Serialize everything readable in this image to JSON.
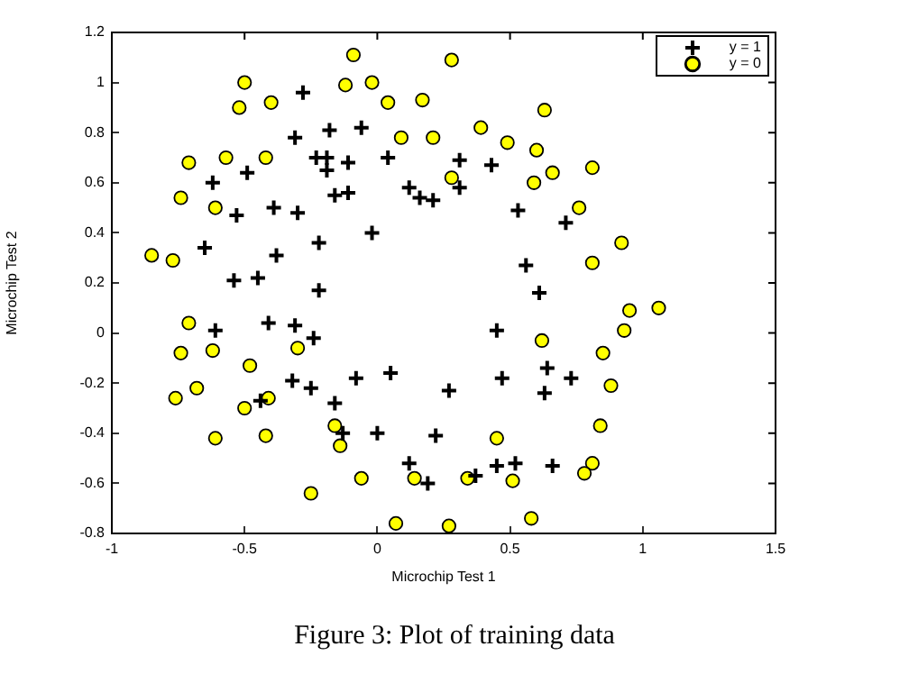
{
  "chart_data": {
    "type": "scatter",
    "xlabel": "Microchip Test 1",
    "ylabel": "Microchip Test 2",
    "xlim": [
      -1,
      1.5
    ],
    "xticks": [
      -1,
      -0.5,
      0,
      0.5,
      1,
      1.5
    ],
    "ylim": [
      -0.8,
      1.2
    ],
    "yticks": [
      -0.8,
      -0.6,
      -0.4,
      -0.2,
      0,
      0.2,
      0.4,
      0.6,
      0.8,
      1,
      1.2
    ],
    "grid": false,
    "legend": "top right",
    "annotations": [
      "Figure 3: Plot of training data"
    ],
    "series": [
      {
        "name": "y = 1",
        "color": "#000000",
        "marker": "cross",
        "x": [
          -0.28,
          -0.31,
          -0.18,
          -0.06,
          -0.23,
          -0.19,
          -0.11,
          0.04,
          -0.19,
          -0.49,
          -0.62,
          -0.16,
          -0.11,
          0.12,
          0.16,
          0.21,
          -0.39,
          -0.53,
          -0.3,
          -0.02,
          -0.22,
          -0.65,
          -0.38,
          -0.54,
          -0.45,
          0.31,
          0.43,
          0.31,
          0.53,
          0.71,
          0.56,
          -0.22,
          -0.61,
          -0.41,
          -0.31,
          -0.24,
          -0.32,
          -0.25,
          -0.08,
          0.05,
          -0.16,
          -0.44,
          -0.13,
          0.0,
          0.22,
          0.12,
          0.19,
          0.27,
          0.61,
          0.45,
          0.64,
          0.47,
          0.73,
          0.63,
          0.45,
          0.52,
          0.66,
          0.37
        ],
        "values": [
          0.96,
          0.78,
          0.81,
          0.82,
          0.7,
          0.7,
          0.68,
          0.7,
          0.65,
          0.64,
          0.6,
          0.55,
          0.56,
          0.58,
          0.54,
          0.53,
          0.5,
          0.47,
          0.48,
          0.4,
          0.36,
          0.34,
          0.31,
          0.21,
          0.22,
          0.69,
          0.67,
          0.58,
          0.49,
          0.44,
          0.27,
          0.17,
          0.01,
          0.04,
          0.03,
          -0.02,
          -0.19,
          -0.22,
          -0.18,
          -0.16,
          -0.28,
          -0.27,
          -0.4,
          -0.4,
          -0.41,
          -0.52,
          -0.6,
          -0.23,
          0.16,
          0.01,
          -0.14,
          -0.18,
          -0.18,
          -0.24,
          -0.53,
          -0.52,
          -0.53,
          -0.57
        ]
      },
      {
        "name": "y = 0",
        "color": "#ffff00",
        "marker": "circle",
        "x": [
          -0.5,
          -0.09,
          -0.12,
          -0.02,
          -0.52,
          -0.4,
          0.04,
          0.17,
          0.28,
          0.09,
          0.21,
          -0.71,
          -0.57,
          -0.42,
          -0.74,
          -0.61,
          -0.85,
          -0.77,
          0.28,
          0.63,
          0.39,
          0.49,
          0.6,
          0.81,
          0.66,
          0.59,
          0.76,
          0.92,
          0.81,
          -0.71,
          -0.74,
          -0.62,
          -0.3,
          -0.48,
          -0.68,
          -0.76,
          -0.41,
          -0.5,
          -0.16,
          -0.14,
          -0.61,
          -0.42,
          -0.06,
          0.14,
          -0.25,
          0.07,
          0.27,
          1.06,
          0.95,
          0.93,
          0.62,
          0.85,
          0.88,
          0.84,
          0.45,
          0.81,
          0.78,
          0.34,
          0.51,
          0.58
        ],
        "values": [
          1.0,
          1.11,
          0.99,
          1.0,
          0.9,
          0.92,
          0.92,
          0.93,
          1.09,
          0.78,
          0.78,
          0.68,
          0.7,
          0.7,
          0.54,
          0.5,
          0.31,
          0.29,
          0.62,
          0.89,
          0.82,
          0.76,
          0.73,
          0.66,
          0.64,
          0.6,
          0.5,
          0.36,
          0.28,
          0.04,
          -0.08,
          -0.07,
          -0.06,
          -0.13,
          -0.22,
          -0.26,
          -0.26,
          -0.3,
          -0.37,
          -0.45,
          -0.42,
          -0.41,
          -0.58,
          -0.58,
          -0.64,
          -0.76,
          -0.77,
          0.1,
          0.09,
          0.01,
          -0.03,
          -0.08,
          -0.21,
          -0.37,
          -0.42,
          -0.52,
          -0.56,
          -0.58,
          -0.59,
          -0.74
        ]
      }
    ]
  }
}
